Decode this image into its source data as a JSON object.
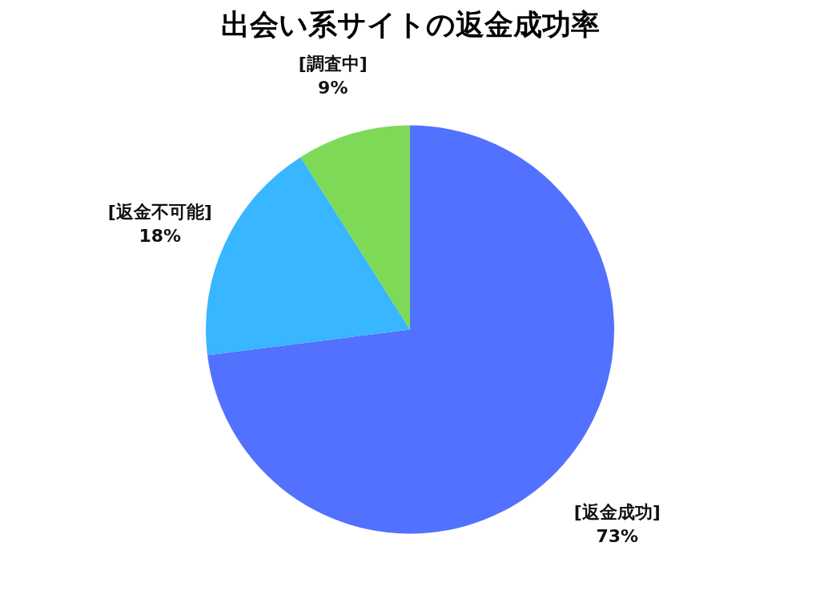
{
  "chart_data": {
    "type": "pie",
    "title": "出会い系サイトの返金成功率",
    "categories": [
      "[返金成功]",
      "[返金不可能]",
      "[調査中]"
    ],
    "values": [
      73,
      18,
      9
    ],
    "colors": [
      "#5271ff",
      "#38b6ff",
      "#7ed957"
    ],
    "value_labels": [
      "73%",
      "18%",
      "9%"
    ],
    "legend": false
  }
}
